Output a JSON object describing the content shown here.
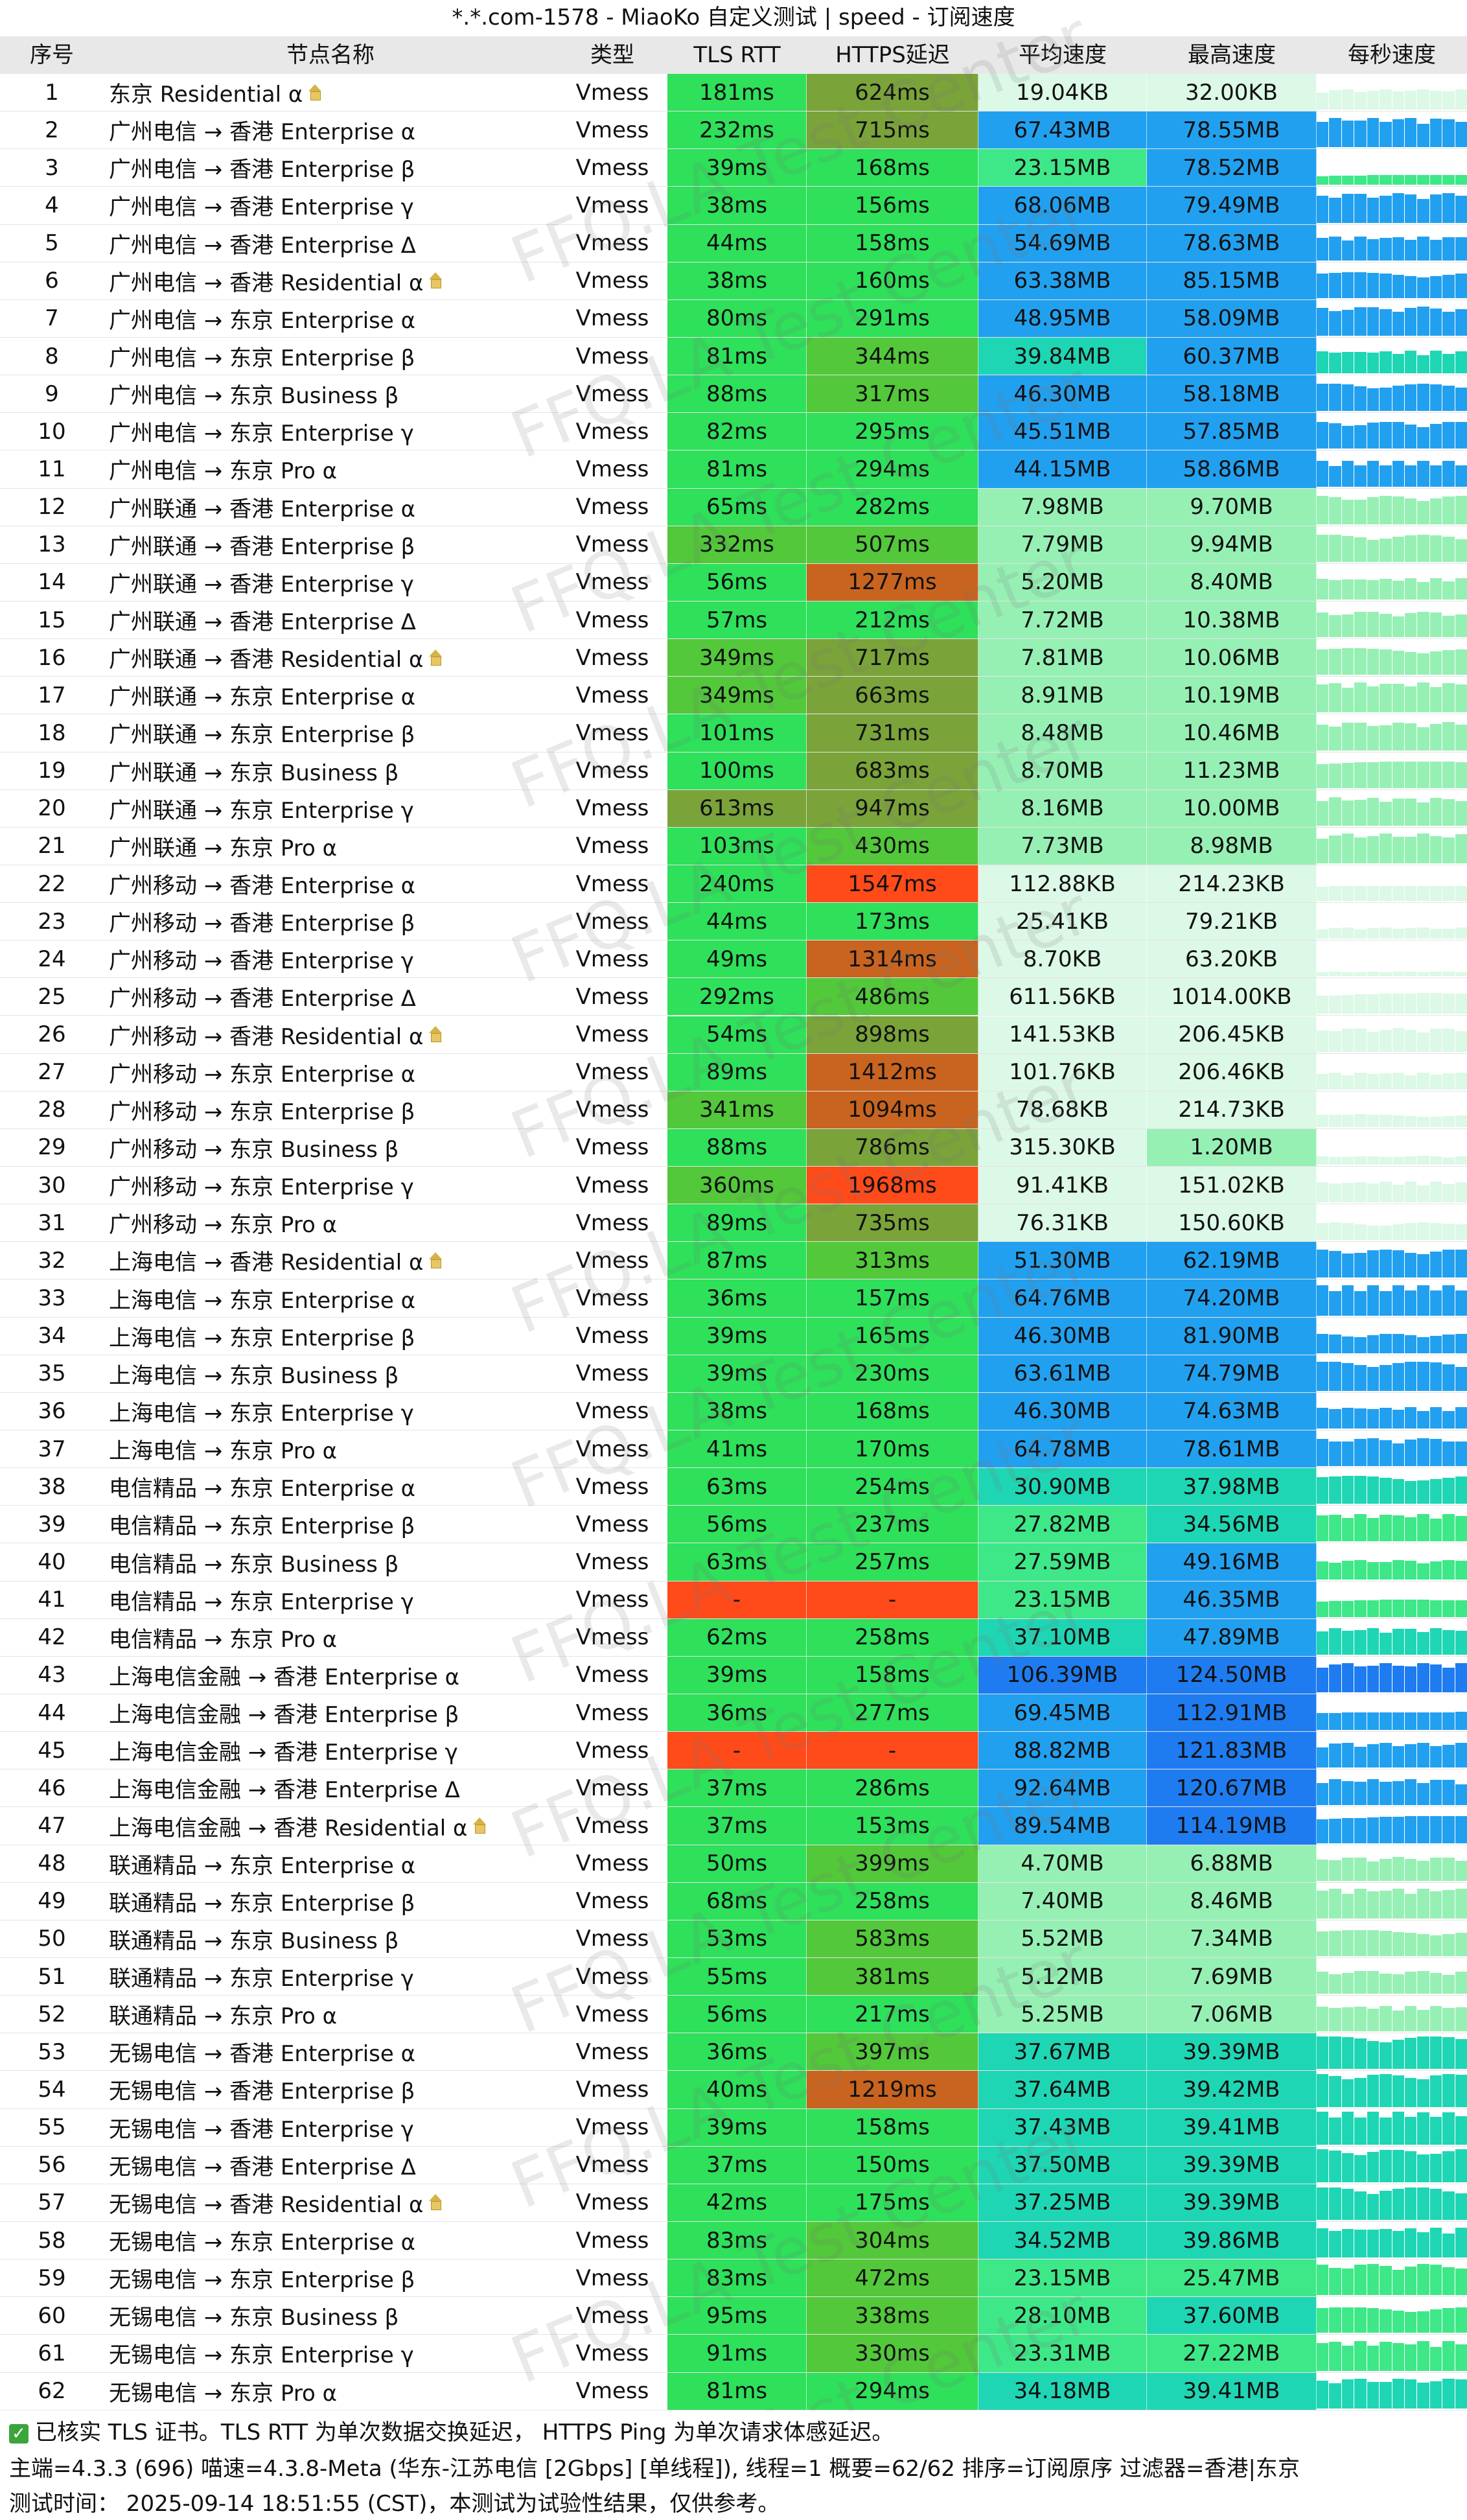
{
  "title": "*.*.com-1578 - MiaoKo 自定义测试 | speed - 订阅速度",
  "columns": [
    "序号",
    "节点名称",
    "类型",
    "TLS RTT",
    "HTTPS延迟",
    "平均速度",
    "最高速度",
    "每秒速度"
  ],
  "watermark": "FFQ.LA Test Center",
  "rows": [
    {
      "idx": "1",
      "name": "东京 Residential α",
      "home": true,
      "type": "Vmess",
      "tls": "181ms",
      "https": "624ms",
      "avg": "19.04KB",
      "max": "32.00KB"
    },
    {
      "idx": "2",
      "name": "广州电信 → 香港 Enterprise α",
      "home": false,
      "type": "Vmess",
      "tls": "232ms",
      "https": "715ms",
      "avg": "67.43MB",
      "max": "78.55MB"
    },
    {
      "idx": "3",
      "name": "广州电信 → 香港 Enterprise β",
      "home": false,
      "type": "Vmess",
      "tls": "39ms",
      "https": "168ms",
      "avg": "23.15MB",
      "max": "78.52MB"
    },
    {
      "idx": "4",
      "name": "广州电信 → 香港 Enterprise γ",
      "home": false,
      "type": "Vmess",
      "tls": "38ms",
      "https": "156ms",
      "avg": "68.06MB",
      "max": "79.49MB"
    },
    {
      "idx": "5",
      "name": "广州电信 → 香港 Enterprise Δ",
      "home": false,
      "type": "Vmess",
      "tls": "44ms",
      "https": "158ms",
      "avg": "54.69MB",
      "max": "78.63MB"
    },
    {
      "idx": "6",
      "name": "广州电信 → 香港 Residential α",
      "home": true,
      "type": "Vmess",
      "tls": "38ms",
      "https": "160ms",
      "avg": "63.38MB",
      "max": "85.15MB"
    },
    {
      "idx": "7",
      "name": "广州电信 → 东京 Enterprise α",
      "home": false,
      "type": "Vmess",
      "tls": "80ms",
      "https": "291ms",
      "avg": "48.95MB",
      "max": "58.09MB"
    },
    {
      "idx": "8",
      "name": "广州电信 → 东京 Enterprise β",
      "home": false,
      "type": "Vmess",
      "tls": "81ms",
      "https": "344ms",
      "avg": "39.84MB",
      "max": "60.37MB"
    },
    {
      "idx": "9",
      "name": "广州电信 → 东京 Business β",
      "home": false,
      "type": "Vmess",
      "tls": "88ms",
      "https": "317ms",
      "avg": "46.30MB",
      "max": "58.18MB"
    },
    {
      "idx": "10",
      "name": "广州电信 → 东京 Enterprise γ",
      "home": false,
      "type": "Vmess",
      "tls": "82ms",
      "https": "295ms",
      "avg": "45.51MB",
      "max": "57.85MB"
    },
    {
      "idx": "11",
      "name": "广州电信 → 东京 Pro α",
      "home": false,
      "type": "Vmess",
      "tls": "81ms",
      "https": "294ms",
      "avg": "44.15MB",
      "max": "58.86MB"
    },
    {
      "idx": "12",
      "name": "广州联通 → 香港 Enterprise α",
      "home": false,
      "type": "Vmess",
      "tls": "65ms",
      "https": "282ms",
      "avg": "7.98MB",
      "max": "9.70MB"
    },
    {
      "idx": "13",
      "name": "广州联通 → 香港 Enterprise β",
      "home": false,
      "type": "Vmess",
      "tls": "332ms",
      "https": "507ms",
      "avg": "7.79MB",
      "max": "9.94MB"
    },
    {
      "idx": "14",
      "name": "广州联通 → 香港 Enterprise γ",
      "home": false,
      "type": "Vmess",
      "tls": "56ms",
      "https": "1277ms",
      "avg": "5.20MB",
      "max": "8.40MB"
    },
    {
      "idx": "15",
      "name": "广州联通 → 香港 Enterprise Δ",
      "home": false,
      "type": "Vmess",
      "tls": "57ms",
      "https": "212ms",
      "avg": "7.72MB",
      "max": "10.38MB"
    },
    {
      "idx": "16",
      "name": "广州联通 → 香港 Residential α",
      "home": true,
      "type": "Vmess",
      "tls": "349ms",
      "https": "717ms",
      "avg": "7.81MB",
      "max": "10.06MB"
    },
    {
      "idx": "17",
      "name": "广州联通 → 东京 Enterprise α",
      "home": false,
      "type": "Vmess",
      "tls": "349ms",
      "https": "663ms",
      "avg": "8.91MB",
      "max": "10.19MB"
    },
    {
      "idx": "18",
      "name": "广州联通 → 东京 Enterprise β",
      "home": false,
      "type": "Vmess",
      "tls": "101ms",
      "https": "731ms",
      "avg": "8.48MB",
      "max": "10.46MB"
    },
    {
      "idx": "19",
      "name": "广州联通 → 东京 Business β",
      "home": false,
      "type": "Vmess",
      "tls": "100ms",
      "https": "683ms",
      "avg": "8.70MB",
      "max": "11.23MB"
    },
    {
      "idx": "20",
      "name": "广州联通 → 东京 Enterprise γ",
      "home": false,
      "type": "Vmess",
      "tls": "613ms",
      "https": "947ms",
      "avg": "8.16MB",
      "max": "10.00MB"
    },
    {
      "idx": "21",
      "name": "广州联通 → 东京 Pro α",
      "home": false,
      "type": "Vmess",
      "tls": "103ms",
      "https": "430ms",
      "avg": "7.73MB",
      "max": "8.98MB"
    },
    {
      "idx": "22",
      "name": "广州移动 → 香港 Enterprise α",
      "home": false,
      "type": "Vmess",
      "tls": "240ms",
      "https": "1547ms",
      "avg": "112.88KB",
      "max": "214.23KB"
    },
    {
      "idx": "23",
      "name": "广州移动 → 香港 Enterprise β",
      "home": false,
      "type": "Vmess",
      "tls": "44ms",
      "https": "173ms",
      "avg": "25.41KB",
      "max": "79.21KB"
    },
    {
      "idx": "24",
      "name": "广州移动 → 香港 Enterprise γ",
      "home": false,
      "type": "Vmess",
      "tls": "49ms",
      "https": "1314ms",
      "avg": "8.70KB",
      "max": "63.20KB"
    },
    {
      "idx": "25",
      "name": "广州移动 → 香港 Enterprise Δ",
      "home": false,
      "type": "Vmess",
      "tls": "292ms",
      "https": "486ms",
      "avg": "611.56KB",
      "max": "1014.00KB"
    },
    {
      "idx": "26",
      "name": "广州移动 → 香港 Residential α",
      "home": true,
      "type": "Vmess",
      "tls": "54ms",
      "https": "898ms",
      "avg": "141.53KB",
      "max": "206.45KB"
    },
    {
      "idx": "27",
      "name": "广州移动 → 东京 Enterprise α",
      "home": false,
      "type": "Vmess",
      "tls": "89ms",
      "https": "1412ms",
      "avg": "101.76KB",
      "max": "206.46KB"
    },
    {
      "idx": "28",
      "name": "广州移动 → 东京 Enterprise β",
      "home": false,
      "type": "Vmess",
      "tls": "341ms",
      "https": "1094ms",
      "avg": "78.68KB",
      "max": "214.73KB"
    },
    {
      "idx": "29",
      "name": "广州移动 → 东京 Business β",
      "home": false,
      "type": "Vmess",
      "tls": "88ms",
      "https": "786ms",
      "avg": "315.30KB",
      "max": "1.20MB"
    },
    {
      "idx": "30",
      "name": "广州移动 → 东京 Enterprise γ",
      "home": false,
      "type": "Vmess",
      "tls": "360ms",
      "https": "1968ms",
      "avg": "91.41KB",
      "max": "151.02KB"
    },
    {
      "idx": "31",
      "name": "广州移动 → 东京 Pro α",
      "home": false,
      "type": "Vmess",
      "tls": "89ms",
      "https": "735ms",
      "avg": "76.31KB",
      "max": "150.60KB"
    },
    {
      "idx": "32",
      "name": "上海电信 → 香港 Residential α",
      "home": true,
      "type": "Vmess",
      "tls": "87ms",
      "https": "313ms",
      "avg": "51.30MB",
      "max": "62.19MB"
    },
    {
      "idx": "33",
      "name": "上海电信 → 东京 Enterprise α",
      "home": false,
      "type": "Vmess",
      "tls": "36ms",
      "https": "157ms",
      "avg": "64.76MB",
      "max": "74.20MB"
    },
    {
      "idx": "34",
      "name": "上海电信 → 东京 Enterprise β",
      "home": false,
      "type": "Vmess",
      "tls": "39ms",
      "https": "165ms",
      "avg": "46.30MB",
      "max": "81.90MB"
    },
    {
      "idx": "35",
      "name": "上海电信 → 东京 Business β",
      "home": false,
      "type": "Vmess",
      "tls": "39ms",
      "https": "230ms",
      "avg": "63.61MB",
      "max": "74.79MB"
    },
    {
      "idx": "36",
      "name": "上海电信 → 东京 Enterprise γ",
      "home": false,
      "type": "Vmess",
      "tls": "38ms",
      "https": "168ms",
      "avg": "46.30MB",
      "max": "74.63MB"
    },
    {
      "idx": "37",
      "name": "上海电信 → 东京 Pro α",
      "home": false,
      "type": "Vmess",
      "tls": "41ms",
      "https": "170ms",
      "avg": "64.78MB",
      "max": "78.61MB"
    },
    {
      "idx": "38",
      "name": "电信精品 → 东京 Enterprise α",
      "home": false,
      "type": "Vmess",
      "tls": "63ms",
      "https": "254ms",
      "avg": "30.90MB",
      "max": "37.98MB"
    },
    {
      "idx": "39",
      "name": "电信精品 → 东京 Enterprise β",
      "home": false,
      "type": "Vmess",
      "tls": "56ms",
      "https": "237ms",
      "avg": "27.82MB",
      "max": "34.56MB"
    },
    {
      "idx": "40",
      "name": "电信精品 → 东京 Business β",
      "home": false,
      "type": "Vmess",
      "tls": "63ms",
      "https": "257ms",
      "avg": "27.59MB",
      "max": "49.16MB"
    },
    {
      "idx": "41",
      "name": "电信精品 → 东京 Enterprise γ",
      "home": false,
      "type": "Vmess",
      "tls": "-",
      "https": "-",
      "avg": "23.15MB",
      "max": "46.35MB"
    },
    {
      "idx": "42",
      "name": "电信精品 → 东京 Pro α",
      "home": false,
      "type": "Vmess",
      "tls": "62ms",
      "https": "258ms",
      "avg": "37.10MB",
      "max": "47.89MB"
    },
    {
      "idx": "43",
      "name": "上海电信金融 → 香港 Enterprise α",
      "home": false,
      "type": "Vmess",
      "tls": "39ms",
      "https": "158ms",
      "avg": "106.39MB",
      "max": "124.50MB"
    },
    {
      "idx": "44",
      "name": "上海电信金融 → 香港 Enterprise β",
      "home": false,
      "type": "Vmess",
      "tls": "36ms",
      "https": "277ms",
      "avg": "69.45MB",
      "max": "112.91MB"
    },
    {
      "idx": "45",
      "name": "上海电信金融 → 香港 Enterprise γ",
      "home": false,
      "type": "Vmess",
      "tls": "-",
      "https": "-",
      "avg": "88.82MB",
      "max": "121.83MB"
    },
    {
      "idx": "46",
      "name": "上海电信金融 → 香港 Enterprise Δ",
      "home": false,
      "type": "Vmess",
      "tls": "37ms",
      "https": "286ms",
      "avg": "92.64MB",
      "max": "120.67MB"
    },
    {
      "idx": "47",
      "name": "上海电信金融 → 香港 Residential α",
      "home": true,
      "type": "Vmess",
      "tls": "37ms",
      "https": "153ms",
      "avg": "89.54MB",
      "max": "114.19MB"
    },
    {
      "idx": "48",
      "name": "联通精品 → 东京 Enterprise α",
      "home": false,
      "type": "Vmess",
      "tls": "50ms",
      "https": "399ms",
      "avg": "4.70MB",
      "max": "6.88MB"
    },
    {
      "idx": "49",
      "name": "联通精品 → 东京 Enterprise β",
      "home": false,
      "type": "Vmess",
      "tls": "68ms",
      "https": "258ms",
      "avg": "7.40MB",
      "max": "8.46MB"
    },
    {
      "idx": "50",
      "name": "联通精品 → 东京 Business β",
      "home": false,
      "type": "Vmess",
      "tls": "53ms",
      "https": "583ms",
      "avg": "5.52MB",
      "max": "7.34MB"
    },
    {
      "idx": "51",
      "name": "联通精品 → 东京 Enterprise γ",
      "home": false,
      "type": "Vmess",
      "tls": "55ms",
      "https": "381ms",
      "avg": "5.12MB",
      "max": "7.69MB"
    },
    {
      "idx": "52",
      "name": "联通精品 → 东京 Pro α",
      "home": false,
      "type": "Vmess",
      "tls": "56ms",
      "https": "217ms",
      "avg": "5.25MB",
      "max": "7.06MB"
    },
    {
      "idx": "53",
      "name": "无锡电信 → 香港 Enterprise α",
      "home": false,
      "type": "Vmess",
      "tls": "36ms",
      "https": "397ms",
      "avg": "37.67MB",
      "max": "39.39MB"
    },
    {
      "idx": "54",
      "name": "无锡电信 → 香港 Enterprise β",
      "home": false,
      "type": "Vmess",
      "tls": "40ms",
      "https": "1219ms",
      "avg": "37.64MB",
      "max": "39.42MB"
    },
    {
      "idx": "55",
      "name": "无锡电信 → 香港 Enterprise γ",
      "home": false,
      "type": "Vmess",
      "tls": "39ms",
      "https": "158ms",
      "avg": "37.43MB",
      "max": "39.41MB"
    },
    {
      "idx": "56",
      "name": "无锡电信 → 香港 Enterprise Δ",
      "home": false,
      "type": "Vmess",
      "tls": "37ms",
      "https": "150ms",
      "avg": "37.50MB",
      "max": "39.39MB"
    },
    {
      "idx": "57",
      "name": "无锡电信 → 香港 Residential α",
      "home": true,
      "type": "Vmess",
      "tls": "42ms",
      "https": "175ms",
      "avg": "37.25MB",
      "max": "39.39MB"
    },
    {
      "idx": "58",
      "name": "无锡电信 → 东京 Enterprise α",
      "home": false,
      "type": "Vmess",
      "tls": "83ms",
      "https": "304ms",
      "avg": "34.52MB",
      "max": "39.86MB"
    },
    {
      "idx": "59",
      "name": "无锡电信 → 东京 Enterprise β",
      "home": false,
      "type": "Vmess",
      "tls": "83ms",
      "https": "472ms",
      "avg": "23.15MB",
      "max": "25.47MB"
    },
    {
      "idx": "60",
      "name": "无锡电信 → 东京 Business β",
      "home": false,
      "type": "Vmess",
      "tls": "95ms",
      "https": "338ms",
      "avg": "28.10MB",
      "max": "37.60MB"
    },
    {
      "idx": "61",
      "name": "无锡电信 → 东京 Enterprise γ",
      "home": false,
      "type": "Vmess",
      "tls": "91ms",
      "https": "330ms",
      "avg": "23.31MB",
      "max": "27.22MB"
    },
    {
      "idx": "62",
      "name": "无锡电信 → 东京 Pro α",
      "home": false,
      "type": "Vmess",
      "tls": "81ms",
      "https": "294ms",
      "avg": "34.18MB",
      "max": "39.41MB"
    }
  ],
  "footer": {
    "line1": "已核实 TLS 证书。TLS RTT 为单次数据交换延迟， HTTPS Ping 为单次请求体感延迟。",
    "line2": "主端=4.3.3 (696) 喵速=4.3.8-Meta (华东-江苏电信 [2Gbps] [单线程]), 线程=1 概要=62/62 排序=订阅原序 过滤器=香港|东京",
    "line3": "测试时间： 2025-09-14 18:51:55 (CST)，本测试为试验性结果，仅供参考。"
  },
  "colors": {
    "header_bg": "#e8e8e8",
    "latency_good": "#2ee05a",
    "latency_ok": "#52c83a",
    "latency_mid": "#7aa33a",
    "latency_poor": "#c86420",
    "latency_bad": "#ff4a1a",
    "speed_top": "#1e7cf0",
    "speed_high": "#22a0f0",
    "speed_mid": "#1fd6b4",
    "speed_low": "#3ee888",
    "speed_lower": "#96f0b4",
    "speed_min": "#dcf8e6",
    "check": "#3aa53a"
  }
}
